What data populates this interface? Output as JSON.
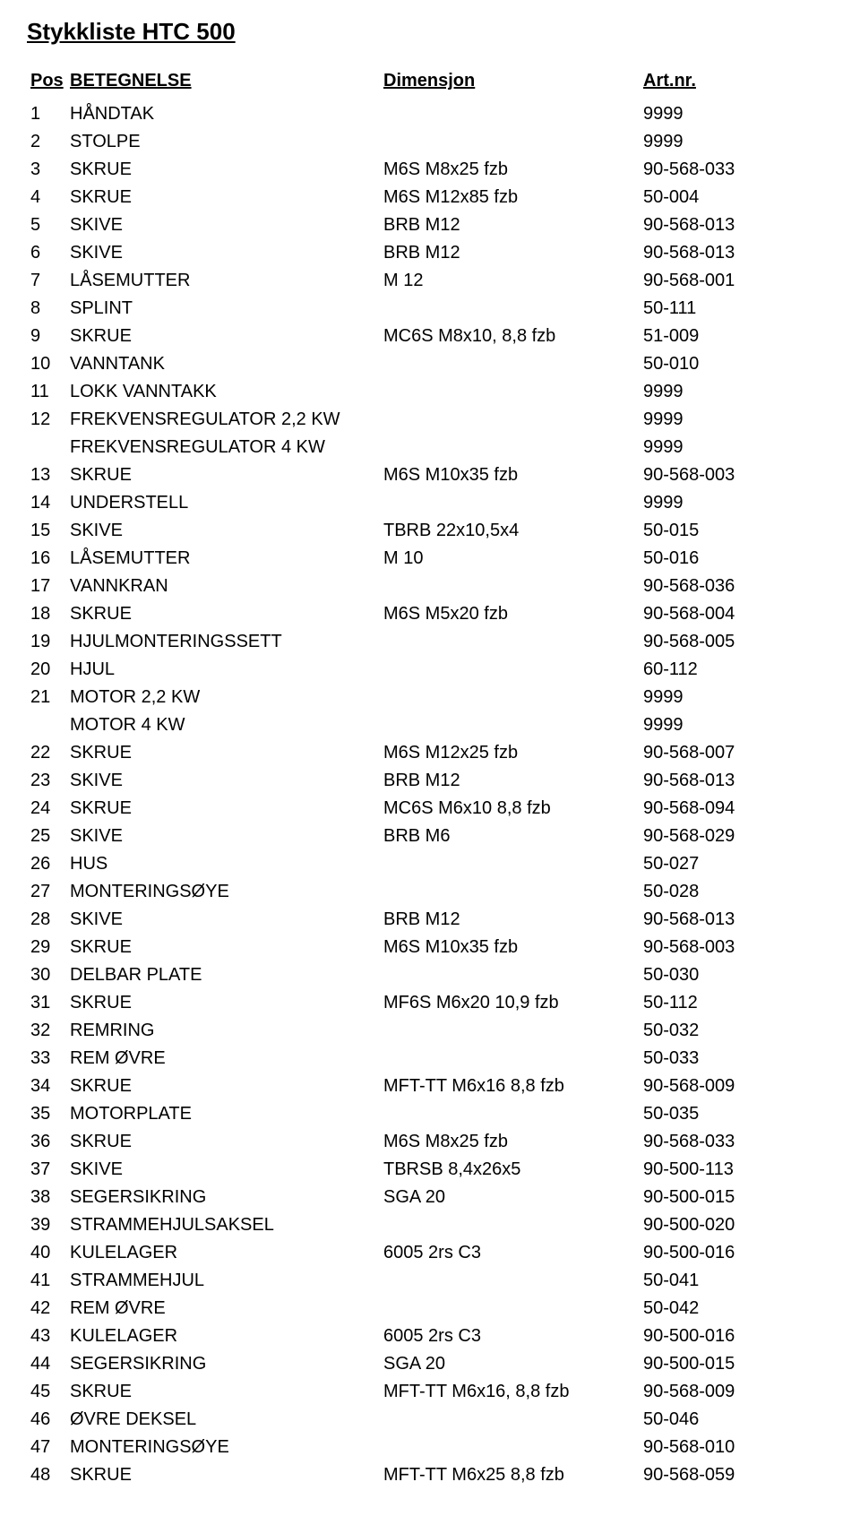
{
  "title": "Stykkliste HTC 500",
  "headers": {
    "pos": "Pos",
    "name": "BETEGNELSE",
    "dim": "Dimensjon",
    "art": "Art.nr."
  },
  "rows": [
    {
      "pos": "1",
      "name": "HÅNDTAK",
      "dim": "",
      "art": "9999"
    },
    {
      "pos": "2",
      "name": "STOLPE",
      "dim": "",
      "art": "9999"
    },
    {
      "pos": "3",
      "name": "SKRUE",
      "dim": "M6S M8x25 fzb",
      "art": "90-568-033"
    },
    {
      "pos": "4",
      "name": "SKRUE",
      "dim": "M6S M12x85 fzb",
      "art": "50-004"
    },
    {
      "pos": "5",
      "name": "SKIVE",
      "dim": "BRB M12",
      "art": "90-568-013"
    },
    {
      "pos": "6",
      "name": "SKIVE",
      "dim": "BRB M12",
      "art": "90-568-013"
    },
    {
      "pos": "7",
      "name": "LÅSEMUTTER",
      "dim": "M 12",
      "art": "90-568-001"
    },
    {
      "pos": "8",
      "name": "SPLINT",
      "dim": "",
      "art": "50-111"
    },
    {
      "pos": "9",
      "name": "SKRUE",
      "dim": "MC6S M8x10, 8,8 fzb",
      "art": "51-009"
    },
    {
      "pos": "10",
      "name": "VANNTANK",
      "dim": "",
      "art": "50-010"
    },
    {
      "pos": "11",
      "name": "LOKK VANNTAKK",
      "dim": "",
      "art": "9999"
    },
    {
      "pos": "12",
      "name": "FREKVENSREGULATOR 2,2 KW",
      "dim": "",
      "art": "9999"
    },
    {
      "pos": "",
      "name": "FREKVENSREGULATOR 4 KW",
      "dim": "",
      "art": "9999"
    },
    {
      "pos": "13",
      "name": "SKRUE",
      "dim": "M6S M10x35 fzb",
      "art": "90-568-003"
    },
    {
      "pos": "14",
      "name": "UNDERSTELL",
      "dim": "",
      "art": "9999"
    },
    {
      "pos": "15",
      "name": "SKIVE",
      "dim": "TBRB 22x10,5x4",
      "art": "50-015"
    },
    {
      "pos": "16",
      "name": "LÅSEMUTTER",
      "dim": "M 10",
      "art": "50-016"
    },
    {
      "pos": "17",
      "name": "VANNKRAN",
      "dim": "",
      "art": "90-568-036"
    },
    {
      "pos": "18",
      "name": "SKRUE",
      "dim": "M6S M5x20 fzb",
      "art": "90-568-004"
    },
    {
      "pos": "19",
      "name": "HJULMONTERINGSSETT",
      "dim": "",
      "art": "90-568-005"
    },
    {
      "pos": "20",
      "name": "HJUL",
      "dim": "",
      "art": "60-112"
    },
    {
      "pos": "21",
      "name": "MOTOR 2,2 KW",
      "dim": "",
      "art": "9999"
    },
    {
      "pos": "",
      "name": "MOTOR 4 KW",
      "dim": "",
      "art": "9999"
    },
    {
      "pos": "22",
      "name": "SKRUE",
      "dim": "M6S M12x25 fzb",
      "art": "90-568-007"
    },
    {
      "pos": "23",
      "name": "SKIVE",
      "dim": "BRB M12",
      "art": "90-568-013"
    },
    {
      "pos": "24",
      "name": "SKRUE",
      "dim": "MC6S M6x10 8,8 fzb",
      "art": "90-568-094"
    },
    {
      "pos": "25",
      "name": "SKIVE",
      "dim": "BRB M6",
      "art": "90-568-029"
    },
    {
      "pos": "26",
      "name": "HUS",
      "dim": "",
      "art": "50-027"
    },
    {
      "pos": "27",
      "name": "MONTERINGSØYE",
      "dim": "",
      "art": "50-028"
    },
    {
      "pos": "28",
      "name": "SKIVE",
      "dim": "BRB M12",
      "art": "90-568-013"
    },
    {
      "pos": "29",
      "name": "SKRUE",
      "dim": "M6S M10x35 fzb",
      "art": "90-568-003"
    },
    {
      "pos": "30",
      "name": "DELBAR PLATE",
      "dim": "",
      "art": "50-030"
    },
    {
      "pos": "31",
      "name": "SKRUE",
      "dim": "MF6S M6x20 10,9 fzb",
      "art": "50-112"
    },
    {
      "pos": "32",
      "name": "REMRING",
      "dim": "",
      "art": "50-032"
    },
    {
      "pos": "33",
      "name": "REM ØVRE",
      "dim": "",
      "art": "50-033"
    },
    {
      "pos": "34",
      "name": "SKRUE",
      "dim": "MFT-TT M6x16 8,8 fzb",
      "art": "90-568-009"
    },
    {
      "pos": "35",
      "name": "MOTORPLATE",
      "dim": "",
      "art": "50-035"
    },
    {
      "pos": "36",
      "name": "SKRUE",
      "dim": "M6S M8x25 fzb",
      "art": "90-568-033"
    },
    {
      "pos": "37",
      "name": "SKIVE",
      "dim": "TBRSB 8,4x26x5",
      "art": "90-500-113"
    },
    {
      "pos": "38",
      "name": "SEGERSIKRING",
      "dim": "SGA 20",
      "art": "90-500-015"
    },
    {
      "pos": "39",
      "name": "STRAMMEHJULSAKSEL",
      "dim": "",
      "art": "90-500-020"
    },
    {
      "pos": "40",
      "name": "KULELAGER",
      "dim": "6005 2rs C3",
      "art": "90-500-016"
    },
    {
      "pos": "41",
      "name": "STRAMMEHJUL",
      "dim": "",
      "art": "50-041"
    },
    {
      "pos": "42",
      "name": "REM ØVRE",
      "dim": "",
      "art": "50-042"
    },
    {
      "pos": "43",
      "name": "KULELAGER",
      "dim": "6005 2rs C3",
      "art": "90-500-016"
    },
    {
      "pos": "44",
      "name": "SEGERSIKRING",
      "dim": "SGA 20",
      "art": "90-500-015"
    },
    {
      "pos": "45",
      "name": "SKRUE",
      "dim": "MFT-TT M6x16, 8,8 fzb",
      "art": "90-568-009"
    },
    {
      "pos": "46",
      "name": "ØVRE DEKSEL",
      "dim": "",
      "art": "50-046"
    },
    {
      "pos": "47",
      "name": "MONTERINGSØYE",
      "dim": "",
      "art": "90-568-010"
    },
    {
      "pos": "48",
      "name": "SKRUE",
      "dim": "MFT-TT M6x25 8,8 fzb",
      "art": "90-568-059"
    }
  ]
}
